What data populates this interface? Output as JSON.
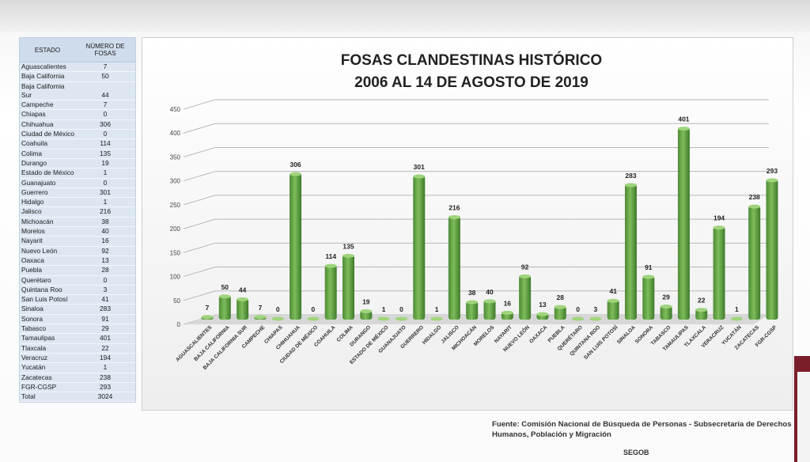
{
  "table": {
    "header_state": "ESTADO",
    "header_count": "NÚMERO DE FOSAS",
    "rows": [
      {
        "state": "Aguascalientes",
        "count": "7"
      },
      {
        "state": "Baja California",
        "count": "50"
      },
      {
        "state": "Baja California Sur",
        "count": "44"
      },
      {
        "state": "Campeche",
        "count": "7"
      },
      {
        "state": "Chiapas",
        "count": "0"
      },
      {
        "state": "Chihuahua",
        "count": "306"
      },
      {
        "state": "Ciudad de México",
        "count": "0"
      },
      {
        "state": "Coahuila",
        "count": "114"
      },
      {
        "state": "Colima",
        "count": "135"
      },
      {
        "state": "Durango",
        "count": "19"
      },
      {
        "state": "Estado de México",
        "count": "1"
      },
      {
        "state": "Guanajuato",
        "count": "0"
      },
      {
        "state": "Guerrero",
        "count": "301"
      },
      {
        "state": "Hidalgo",
        "count": "1"
      },
      {
        "state": "Jalisco",
        "count": "216"
      },
      {
        "state": "Michoacán",
        "count": "38"
      },
      {
        "state": "Morelos",
        "count": "40"
      },
      {
        "state": "Nayarit",
        "count": "16"
      },
      {
        "state": "Nuevo León",
        "count": "92"
      },
      {
        "state": "Oaxaca",
        "count": "13"
      },
      {
        "state": "Puebla",
        "count": "28"
      },
      {
        "state": "Querétaro",
        "count": "0"
      },
      {
        "state": "Quintana Roo",
        "count": "3"
      },
      {
        "state": "San Luis Potosí",
        "count": "41"
      },
      {
        "state": "Sinaloa",
        "count": "283"
      },
      {
        "state": "Sonora",
        "count": "91"
      },
      {
        "state": "Tabasco",
        "count": "29"
      },
      {
        "state": "Tamaulipas",
        "count": "401"
      },
      {
        "state": "Tlaxcala",
        "count": "22"
      },
      {
        "state": "Veracruz",
        "count": "194"
      },
      {
        "state": "Yucatán",
        "count": "1"
      },
      {
        "state": "Zacatecas",
        "count": "238"
      },
      {
        "state": "FGR-CGSP",
        "count": "293"
      },
      {
        "state": "Total",
        "count": "3024"
      }
    ]
  },
  "chart_data": {
    "type": "bar",
    "title_line1": "FOSAS CLANDESTINAS HISTÓRICO",
    "title_line2": "2006 AL 14 DE AGOSTO DE 2019",
    "categories": [
      "AGUASCALIENTES",
      "BAJA CALIFORNIA",
      "BAJA CALIFORNIA SUR",
      "CAMPECHE",
      "CHIAPAS",
      "CHIHUAHUA",
      "CIUDAD DE MÉXICO",
      "COAHUILA",
      "COLIMA",
      "DURANGO",
      "ESTADO DE MÉXICO",
      "GUANAJUATO",
      "GUERRERO",
      "HIDALGO",
      "JALISCO",
      "MICHOACÁN",
      "MORELOS",
      "NAYARIT",
      "NUEVO LEÓN",
      "OAXACA",
      "PUEBLA",
      "QUERÉTARO",
      "QUINTANA ROO",
      "SAN LUIS POTOSÍ",
      "SINALOA",
      "SONORA",
      "TABASCO",
      "TAMAULIPAS",
      "TLAXCALA",
      "VERACRUZ",
      "YUCATÁN",
      "ZACATECAS",
      "FGR-CGSP"
    ],
    "values": [
      7,
      50,
      44,
      7,
      0,
      306,
      0,
      114,
      135,
      19,
      1,
      0,
      301,
      1,
      216,
      38,
      40,
      16,
      92,
      13,
      28,
      0,
      3,
      41,
      283,
      91,
      29,
      401,
      22,
      194,
      1,
      238,
      293
    ],
    "ylim": [
      0,
      450
    ],
    "yticks": [
      0,
      50,
      100,
      150,
      200,
      250,
      300,
      350,
      400,
      450
    ],
    "grid": true,
    "bar_color": "#6aa84f"
  },
  "source": {
    "text": "Fuente: Comisión Nacional de Búsqueda de Personas - Subsecretaría de Derechos Humanos, Población y Migración",
    "org": "SEGOB"
  }
}
